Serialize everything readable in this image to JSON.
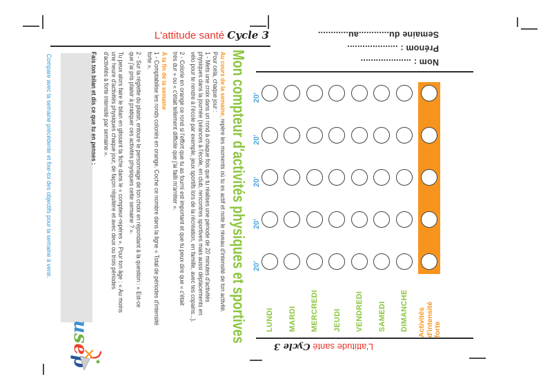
{
  "brand": {
    "title": "L'attitude santé",
    "cycle": "Cycle 3"
  },
  "form": {
    "nom": "Nom : ....................",
    "prenom": "Prénom : ....................",
    "semaine": "Semaine du............au............"
  },
  "main_title": "Mon compteur d'activités physiques et sportives",
  "sidebar": {
    "compare_text": "Compare avec la semaine précédente et fixe-toi des objectifs pour la semaine à venir."
  },
  "instructions": {
    "intro_highlight": "Au cours de la semaine,",
    "lines": [
      {
        "kind": "intro",
        "text": " repère les moments où tu es actif et note le niveau d'intensité de ton activité."
      },
      {
        "kind": "normal",
        "text": "Pour cela, chaque jour :"
      },
      {
        "kind": "normal",
        "text": "1 - Mets une croix dans un rond à chaque fois que tu réalises une période de 20 minutes d'activités"
      },
      {
        "kind": "normal",
        "text": "physiques dans la journée (séances à l'école, en club, rencontres sportives mais aussi déplacements en"
      },
      {
        "kind": "normal",
        "text": "vélo pour te rendre à l'école par exemple, jeux sportifs lors de la récréation, en famille, avec tes copains...)."
      },
      {
        "kind": "normal",
        "text": "2 - Colorie en orange ce rond si l'effort que tu as fourni est important et que tu peux dire que « c'était"
      },
      {
        "kind": "normal",
        "text": "très dur » ou « c'était tellement difficile que j'ai failli m'arrêter »."
      },
      {
        "kind": "header",
        "text": "À la fin de la semaine"
      },
      {
        "kind": "normal",
        "text": "1 - Comptabilise les ronds coloriés en orange. Coche ce nombre dans la ligne « Total de périodes d'intensité"
      },
      {
        "kind": "normal",
        "text": "forte »."
      },
      {
        "kind": "normal",
        "text": "2 - Sur la réglette du plaisir, entoure le personnage de ton choix en répondant à la question : « Est-ce"
      },
      {
        "kind": "normal",
        "text": "que j'ai pris plaisir à pratiquer ces activités physiques cette semaine ? »."
      },
      {
        "kind": "normal",
        "text": "Tu peux alors faire le bilan en glissant ta fiche dans le « compteur-repères ». Pour ton âge : « Au moins"
      },
      {
        "kind": "normal",
        "text": "une heure d'activités physiques chaque jour, de façon régulière et avec deux ou trois périodes"
      },
      {
        "kind": "normal",
        "text": "d'activités à forte intensité par semaine »."
      },
      {
        "kind": "bold",
        "text": "Fais ton bilan et dis ce que tu en penses :"
      }
    ]
  },
  "week_grid": {
    "period_label": "20'",
    "periods_per_day": 5,
    "days": [
      "LUNDI",
      "MARDI",
      "MERCREDI",
      "JEUDI",
      "VENDREDI",
      "SAMEDI",
      "DIMANCHE"
    ],
    "strong_label_lines": [
      "Activités",
      "d'intensité",
      "forte"
    ],
    "footer_title": "L'attitude santé",
    "footer_cycle": "Cycle 3"
  },
  "logo": {
    "text": "usep"
  },
  "colors": {
    "red": "#e8352b",
    "green": "#8cc63f",
    "orange": "#f7941d",
    "period_blue": "#4ba7d9",
    "sidebar_blue": "#2e97d3",
    "ink": "#3f3f3f"
  }
}
